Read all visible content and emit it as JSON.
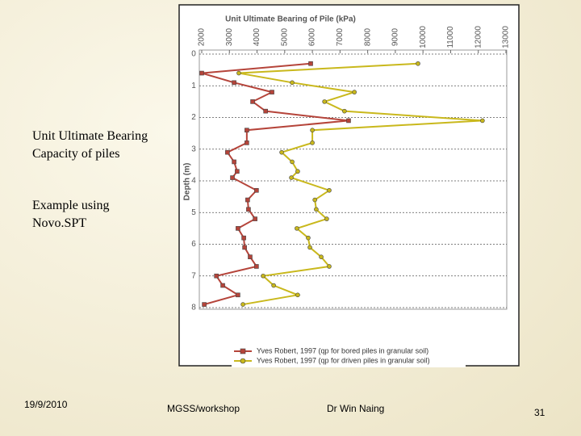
{
  "slide": {
    "text": [
      "Unit Ultimate Bearing Capacity of piles",
      "Example using Novo.SPT"
    ],
    "footer": {
      "date": "19/9/2010",
      "event": "MGSS/workshop",
      "author": "Dr Win Naing",
      "page": "31"
    }
  },
  "chart_data": {
    "type": "line",
    "title": "Unit Ultimate Bearing of Pile (kPa)",
    "y_label": "Depth (m)",
    "ylim": [
      2000,
      13000
    ],
    "yticks": [
      2000,
      3000,
      4000,
      5000,
      6000,
      7000,
      8000,
      9000,
      10000,
      11000,
      12000,
      13000
    ],
    "xlim": [
      0,
      8
    ],
    "xticks": [
      0,
      1,
      2,
      3,
      4,
      5,
      6,
      7,
      8
    ],
    "grid": true,
    "legend": "bottom",
    "series": [
      {
        "name": "Yves Robert, 1997 (qp for bored piles in granular soil)",
        "color": "#b5443a",
        "marker": "square",
        "x": [
          0.3,
          0.6,
          0.9,
          1.2,
          1.5,
          1.8,
          2.1,
          2.4,
          2.8,
          3.1,
          3.4,
          3.7,
          3.9,
          4.3,
          4.6,
          4.9,
          5.2,
          5.5,
          5.8,
          6.1,
          6.4,
          6.7,
          7.0,
          7.3,
          7.6,
          7.9
        ],
        "values": [
          5940,
          2000,
          3170,
          4540,
          3840,
          4310,
          7310,
          3630,
          3630,
          2930,
          3170,
          3280,
          3110,
          3980,
          3660,
          3690,
          3930,
          3310,
          3520,
          3550,
          3750,
          3980,
          2530,
          2760,
          3310,
          2090
        ]
      },
      {
        "name": "Yves Robert, 1997 (qp for driven piles in granular soil)",
        "color": "#c9b81c",
        "marker": "circle",
        "x": [
          0.3,
          0.6,
          0.9,
          1.2,
          1.5,
          1.8,
          2.1,
          2.4,
          2.8,
          3.1,
          3.4,
          3.7,
          3.9,
          4.3,
          4.6,
          4.9,
          5.2,
          5.5,
          5.8,
          6.1,
          6.4,
          6.7,
          7.0,
          7.3,
          7.6,
          7.9
        ],
        "values": [
          9820,
          3340,
          5270,
          7520,
          6440,
          7160,
          12150,
          6000,
          6000,
          4890,
          5270,
          5470,
          5240,
          6610,
          6090,
          6140,
          6520,
          5440,
          5850,
          5910,
          6320,
          6610,
          4220,
          4600,
          5470,
          3490
        ]
      }
    ]
  }
}
